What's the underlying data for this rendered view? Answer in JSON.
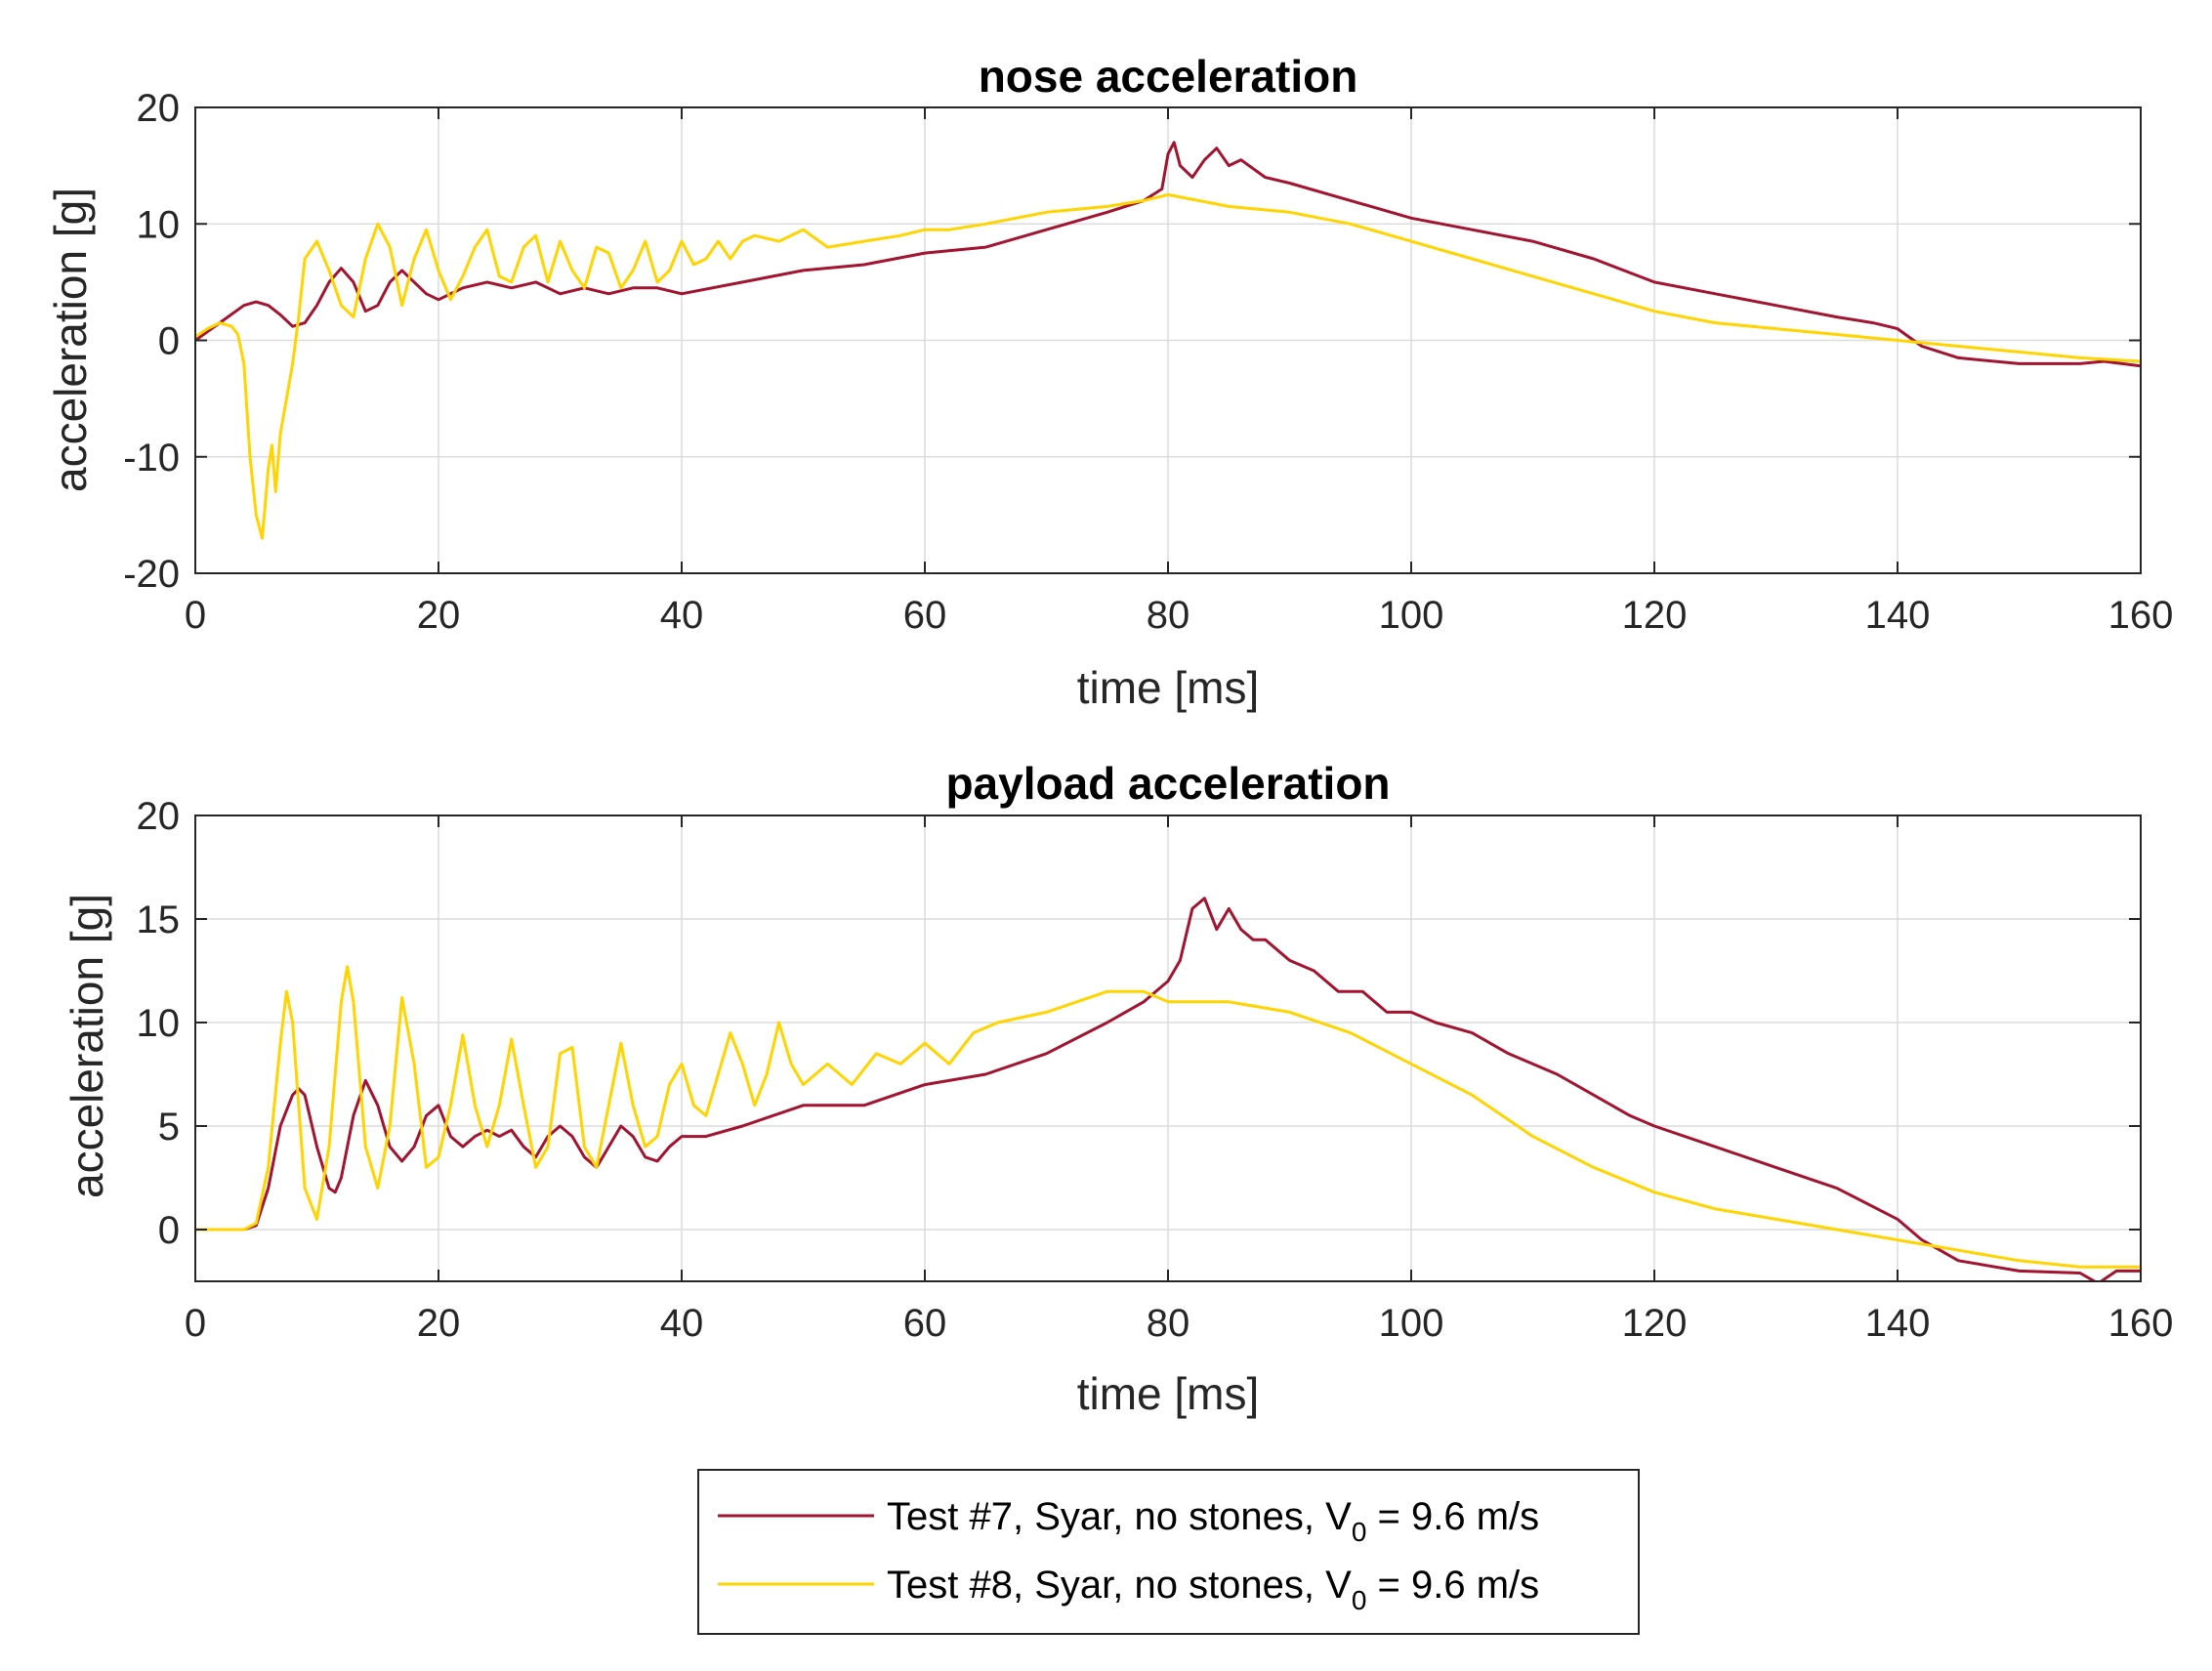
{
  "colors": {
    "test7": "#A2142F",
    "test8": "#FFD400",
    "grid": "#dcdcdc",
    "axis": "#262626"
  },
  "legend": {
    "entries": [
      {
        "pre": "Test #7, Syar, no stones, V",
        "sub": "0",
        "post": " = 9.6 m/s"
      },
      {
        "pre": "Test #8, Syar, no stones, V",
        "sub": "0",
        "post": " = 9.6 m/s"
      }
    ]
  },
  "chart_data": [
    {
      "type": "line",
      "title": "nose acceleration",
      "xlabel": "time [ms]",
      "ylabel": "acceleration [g]",
      "xlim": [
        0,
        160
      ],
      "ylim": [
        -20,
        20
      ],
      "xticks": [
        0,
        20,
        40,
        60,
        80,
        100,
        120,
        140,
        160
      ],
      "yticks": [
        -20,
        -10,
        0,
        10,
        20
      ],
      "grid": true,
      "series": [
        {
          "name": "Test #7, Syar, no stones, V0 = 9.6 m/s",
          "color": "#A2142F",
          "x": [
            0,
            2,
            4,
            5,
            6,
            7,
            8,
            9,
            10,
            11,
            12,
            13,
            14,
            15,
            16,
            17,
            18,
            19,
            20,
            22,
            24,
            26,
            28,
            30,
            32,
            34,
            36,
            38,
            40,
            45,
            50,
            55,
            60,
            65,
            70,
            75,
            78,
            79.5,
            80,
            80.5,
            81,
            82,
            83,
            84,
            85,
            86,
            88,
            90,
            95,
            100,
            105,
            110,
            115,
            120,
            125,
            130,
            135,
            138,
            140,
            142,
            145,
            150,
            155,
            157,
            160
          ],
          "y": [
            0,
            1.5,
            3,
            3.3,
            3,
            2.2,
            1.2,
            1.5,
            3,
            5,
            6.2,
            5,
            2.5,
            3,
            5,
            6,
            5,
            4,
            3.5,
            4.5,
            5,
            4.5,
            5,
            4,
            4.5,
            4,
            4.5,
            4.5,
            4,
            5,
            6,
            6.5,
            7.5,
            8,
            9.5,
            11,
            12,
            13,
            16,
            17,
            15,
            14,
            15.5,
            16.5,
            15,
            15.5,
            14,
            13.5,
            12,
            10.5,
            9.5,
            8.5,
            7,
            5,
            4,
            3,
            2,
            1.5,
            1,
            -0.5,
            -1.5,
            -2,
            -2,
            -1.8,
            -2.2
          ]
        },
        {
          "name": "Test #8, Syar, no stones, V0 = 9.6 m/s",
          "color": "#FFD400",
          "x": [
            0,
            1,
            2,
            3,
            3.5,
            4,
            4.5,
            5,
            5.5,
            6,
            6.3,
            6.6,
            7,
            7.5,
            8,
            8.5,
            9,
            10,
            11,
            12,
            13,
            14,
            15,
            16,
            17,
            18,
            19,
            20,
            21,
            22,
            23,
            24,
            25,
            26,
            27,
            28,
            29,
            30,
            31,
            32,
            33,
            34,
            35,
            36,
            37,
            38,
            39,
            40,
            41,
            42,
            43,
            44,
            45,
            46,
            48,
            50,
            52,
            55,
            58,
            60,
            62,
            65,
            70,
            75,
            78,
            80,
            85,
            90,
            95,
            100,
            105,
            110,
            115,
            120,
            125,
            130,
            135,
            140,
            145,
            150,
            155,
            160
          ],
          "y": [
            0.3,
            1,
            1.5,
            1.2,
            0.5,
            -2,
            -10,
            -15,
            -17,
            -11,
            -9,
            -13,
            -8,
            -5,
            -2,
            2,
            7,
            8.5,
            6,
            3,
            2,
            7,
            10,
            8,
            3,
            7,
            9.5,
            6,
            3.5,
            5.5,
            8,
            9.5,
            5.5,
            5,
            8,
            9,
            5,
            8.5,
            6,
            4.5,
            8,
            7.5,
            4.5,
            6,
            8.5,
            5,
            6,
            8.5,
            6.5,
            7,
            8.5,
            7,
            8.5,
            9,
            8.5,
            9.5,
            8,
            8.5,
            9,
            9.5,
            9.5,
            10,
            11,
            11.5,
            12,
            12.5,
            11.5,
            11,
            10,
            8.5,
            7,
            5.5,
            4,
            2.5,
            1.5,
            1,
            0.5,
            0,
            -0.5,
            -1,
            -1.5,
            -1.8
          ]
        }
      ]
    },
    {
      "type": "line",
      "title": "payload acceleration",
      "xlabel": "time [ms]",
      "ylabel": "acceleration [g]",
      "xlim": [
        0,
        160
      ],
      "ylim": [
        -2.5,
        20
      ],
      "xticks": [
        0,
        20,
        40,
        60,
        80,
        100,
        120,
        140,
        160
      ],
      "yticks": [
        0,
        5,
        10,
        15,
        20
      ],
      "grid": true,
      "series": [
        {
          "name": "Test #7, Syar, no stones, V0 = 9.6 m/s",
          "color": "#A2142F",
          "x": [
            0,
            4,
            5,
            6,
            7,
            8,
            8.5,
            9,
            10,
            11,
            11.5,
            12,
            13,
            14,
            15,
            16,
            17,
            18,
            19,
            20,
            21,
            22,
            23,
            24,
            25,
            26,
            27,
            28,
            29,
            30,
            31,
            32,
            33,
            34,
            35,
            36,
            37,
            38,
            39,
            40,
            42,
            45,
            50,
            55,
            60,
            65,
            70,
            75,
            78,
            80,
            81,
            82,
            83,
            84,
            85,
            86,
            87,
            88,
            90,
            92,
            94,
            96,
            98,
            100,
            102,
            105,
            108,
            110,
            112,
            115,
            118,
            120,
            125,
            130,
            135,
            140,
            142,
            145,
            150,
            155,
            156.5,
            158,
            160
          ],
          "y": [
            0,
            0,
            0.2,
            2,
            5,
            6.5,
            6.8,
            6.5,
            4,
            2,
            1.8,
            2.5,
            5.5,
            7.2,
            6,
            4,
            3.3,
            4,
            5.5,
            6,
            4.5,
            4,
            4.5,
            4.8,
            4.5,
            4.8,
            4,
            3.5,
            4.5,
            5,
            4.5,
            3.5,
            3,
            4,
            5,
            4.5,
            3.5,
            3.3,
            4,
            4.5,
            4.5,
            5,
            6,
            6,
            7,
            7.5,
            8.5,
            10,
            11,
            12,
            13,
            15.5,
            16,
            14.5,
            15.5,
            14.5,
            14,
            14,
            13,
            12.5,
            11.5,
            11.5,
            10.5,
            10.5,
            10,
            9.5,
            8.5,
            8,
            7.5,
            6.5,
            5.5,
            5,
            4,
            3,
            2,
            0.5,
            -0.5,
            -1.5,
            -2,
            -2.1,
            -2.6,
            -2,
            -2
          ]
        },
        {
          "name": "Test #8, Syar, no stones, V0 = 9.6 m/s",
          "color": "#FFD400",
          "x": [
            0,
            4,
            5,
            6,
            6.5,
            7,
            7.5,
            8,
            8.5,
            9,
            10,
            11,
            12,
            12.5,
            13,
            14,
            15,
            16,
            17,
            18,
            19,
            20,
            21,
            22,
            23,
            24,
            25,
            26,
            27,
            28,
            29,
            30,
            31,
            32,
            33,
            34,
            35,
            36,
            37,
            38,
            39,
            40,
            41,
            42,
            43,
            44,
            45,
            46,
            47,
            48,
            49,
            50,
            52,
            54,
            56,
            58,
            60,
            62,
            64,
            66,
            70,
            75,
            78,
            80,
            85,
            90,
            95,
            100,
            105,
            110,
            115,
            120,
            125,
            130,
            135,
            140,
            145,
            150,
            155,
            160
          ],
          "y": [
            0,
            0,
            0.3,
            3,
            6,
            9,
            11.5,
            10,
            6,
            2,
            0.5,
            4,
            11,
            12.7,
            11,
            4,
            2,
            5,
            11.2,
            8,
            3,
            3.5,
            6,
            9.4,
            6,
            4,
            6,
            9.2,
            6,
            3,
            4,
            8.5,
            8.8,
            4,
            3,
            6,
            9,
            6,
            4,
            4.5,
            7,
            8,
            6,
            5.5,
            7.5,
            9.5,
            8,
            6,
            7.5,
            10,
            8,
            7,
            8,
            7,
            8.5,
            8,
            9,
            8,
            9.5,
            10,
            10.5,
            11.5,
            11.5,
            11,
            11,
            10.5,
            9.5,
            8,
            6.5,
            4.5,
            3,
            1.8,
            1,
            0.5,
            0,
            -0.5,
            -1,
            -1.5,
            -1.8,
            -1.8
          ]
        }
      ]
    }
  ]
}
